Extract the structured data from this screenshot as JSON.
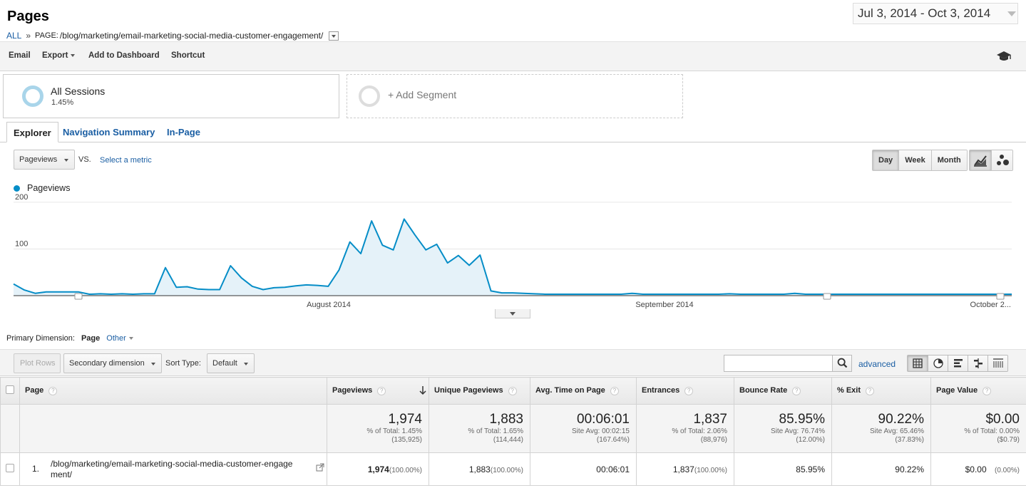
{
  "header": {
    "title": "Pages",
    "breadcrumb_all": "ALL",
    "breadcrumb_sep": "»",
    "breadcrumb_page_prefix": "PAGE:",
    "breadcrumb_page": "/blog/marketing/email-marketing-social-media-customer-engagement/",
    "date_range": "Jul 3, 2014 - Oct 3, 2014"
  },
  "toolbar": {
    "email": "Email",
    "export": "Export",
    "add_to_dashboard": "Add to Dashboard",
    "shortcut": "Shortcut",
    "education_icon": "graduation-cap-icon"
  },
  "segments": {
    "all_name": "All Sessions",
    "all_pct": "1.45%",
    "add_label": "+ Add Segment"
  },
  "tabs": {
    "explorer": "Explorer",
    "navigation_summary": "Navigation Summary",
    "in_page": "In-Page"
  },
  "chart_controls": {
    "metric": "Pageviews",
    "vs": "VS.",
    "select_metric": "Select a metric",
    "day": "Day",
    "week": "Week",
    "month": "Month",
    "line_chart_icon": "line-chart-icon",
    "motion_chart_icon": "bubble-chart-icon"
  },
  "chart_data": {
    "type": "area",
    "series": [
      {
        "name": "Pageviews",
        "color": "#058dc7",
        "values": [
          25,
          12,
          5,
          8,
          8,
          8,
          8,
          3,
          4,
          3,
          4,
          3,
          4,
          4,
          60,
          18,
          19,
          14,
          13,
          13,
          64,
          38,
          20,
          13,
          17,
          18,
          21,
          23,
          22,
          20,
          55,
          115,
          90,
          160,
          108,
          98,
          164,
          130,
          98,
          110,
          70,
          86,
          65,
          87,
          10,
          6,
          6,
          5,
          4,
          3,
          3,
          3,
          3,
          3,
          3,
          3,
          3,
          5,
          3,
          3,
          3,
          3,
          3,
          3,
          3,
          3,
          4,
          3,
          3,
          3,
          3,
          3,
          5,
          3,
          3,
          3,
          3,
          3,
          3,
          3,
          3,
          3,
          3,
          3,
          3,
          3,
          3,
          3,
          3,
          3,
          3,
          3,
          3
        ]
      }
    ],
    "y_ticks": [
      100,
      200
    ],
    "ylim": [
      0,
      200
    ],
    "x_labels": [
      "August 2014",
      "September 2014",
      "October 2..."
    ],
    "grid": true,
    "legend": "top-left"
  },
  "primary_dimension": {
    "label": "Primary Dimension:",
    "current": "Page",
    "other": "Other"
  },
  "table_controls": {
    "plot_rows": "Plot Rows",
    "secondary_dimension": "Secondary dimension",
    "sort_type_label": "Sort Type:",
    "sort_type": "Default",
    "search_value": "",
    "advanced": "advanced"
  },
  "table": {
    "headers": {
      "page": "Page",
      "pageviews": "Pageviews",
      "unique_pageviews": "Unique Pageviews",
      "avg_time": "Avg. Time on Page",
      "entrances": "Entrances",
      "bounce_rate": "Bounce Rate",
      "exit": "% Exit",
      "page_value": "Page Value",
      "help": "?"
    },
    "totals": {
      "pageviews": {
        "value": "1,974",
        "sub1": "% of Total: 1.45%",
        "sub2": "(135,925)"
      },
      "unique_pageviews": {
        "value": "1,883",
        "sub1": "% of Total: 1.65%",
        "sub2": "(114,444)"
      },
      "avg_time": {
        "value": "00:06:01",
        "sub1": "Site Avg: 00:02:15",
        "sub2": "(167.64%)"
      },
      "entrances": {
        "value": "1,837",
        "sub1": "% of Total: 2.06%",
        "sub2": "(88,976)"
      },
      "bounce_rate": {
        "value": "85.95%",
        "sub1": "Site Avg: 76.74%",
        "sub2": "(12.00%)"
      },
      "exit": {
        "value": "90.22%",
        "sub1": "Site Avg: 65.46%",
        "sub2": "(37.83%)"
      },
      "page_value": {
        "value": "$0.00",
        "sub1": "% of Total: 0.00%",
        "sub2": "($0.79)"
      }
    },
    "rows": [
      {
        "index": "1.",
        "page_line1": "/blog/marketing/email-marketing-social-media-customer-engage",
        "page_line2": "ment/",
        "pageviews": "1,974",
        "pageviews_pct": "(100.00%)",
        "unique_pageviews": "1,883",
        "unique_pageviews_pct": "(100.00%)",
        "avg_time": "00:06:01",
        "entrances": "1,837",
        "entrances_pct": "(100.00%)",
        "bounce_rate": "85.95%",
        "exit": "90.22%",
        "page_value": "$0.00",
        "page_value_pct": "(0.00%)"
      }
    ]
  }
}
